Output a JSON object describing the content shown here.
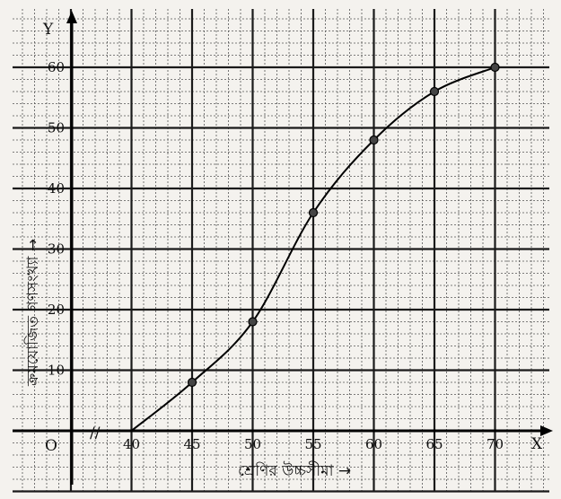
{
  "chart_data": {
    "type": "line",
    "title": "",
    "xlabel": "শ্রেণির উচ্চসীমা →",
    "ylabel": "ক্রমযোজিত গণসংখ্যা →",
    "x_axis_letter": "X",
    "y_axis_letter": "Y",
    "origin_label": "O",
    "axis_break": "//",
    "x": [
      40,
      45,
      50,
      55,
      60,
      65,
      70
    ],
    "series": [
      {
        "values": [
          0,
          8,
          18,
          36,
          48,
          56,
          60
        ]
      }
    ],
    "xticks": [
      "40",
      "45",
      "50",
      "55",
      "60",
      "65",
      "70"
    ],
    "yticks": [
      "10",
      "20",
      "30",
      "40",
      "50",
      "60"
    ],
    "xlim": [
      35,
      72
    ],
    "ylim": [
      0,
      65
    ],
    "grid": true,
    "colors": {
      "paper": "#f4f2ee",
      "grid_major": "#1a1a1a",
      "grid_minor": "#555555",
      "curve": "#000000"
    }
  }
}
